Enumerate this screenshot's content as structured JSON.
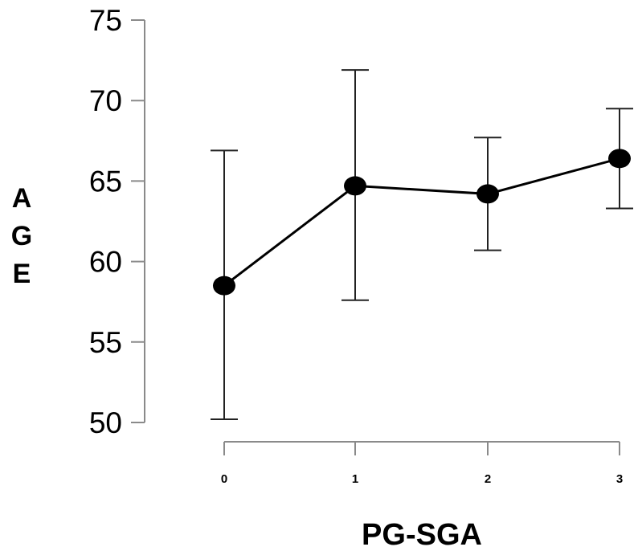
{
  "chart_data": {
    "type": "line",
    "title": "",
    "xlabel": "PG-SGA",
    "ylabel_letters": [
      "A",
      "G",
      "E"
    ],
    "ylim": [
      50,
      75
    ],
    "yticks": [
      50,
      55,
      60,
      65,
      70,
      75
    ],
    "categories": [
      "0",
      "1",
      "2",
      "3"
    ],
    "grid": false,
    "legend": "none",
    "series": [
      {
        "values": [
          58.5,
          64.7,
          64.2,
          66.4
        ],
        "error_low": [
          50.2,
          57.6,
          60.7,
          63.3
        ],
        "error_high": [
          66.9,
          71.9,
          67.7,
          69.5
        ]
      }
    ],
    "colors": {
      "line": "#000000",
      "axis": "#8a8a8a"
    }
  }
}
